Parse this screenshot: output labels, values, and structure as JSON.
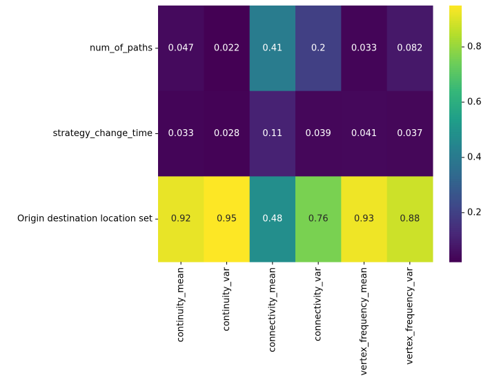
{
  "chart_data": {
    "type": "heatmap",
    "title": "",
    "xlabel": "",
    "ylabel": "",
    "colormap": "viridis",
    "x_categories": [
      "continuity_mean",
      "continuity_var",
      "connectivity_mean",
      "connectivity_var",
      "vertex_frequency_mean",
      "vertex_frequency_var"
    ],
    "y_categories": [
      "num_of_paths",
      "strategy_change_time",
      "Origin destination location set"
    ],
    "values": [
      [
        0.047,
        0.022,
        0.41,
        0.2,
        0.033,
        0.082
      ],
      [
        0.033,
        0.028,
        0.11,
        0.039,
        0.041,
        0.037
      ],
      [
        0.92,
        0.95,
        0.48,
        0.76,
        0.93,
        0.88
      ]
    ],
    "value_labels": [
      [
        "0.047",
        "0.022",
        "0.41",
        "0.2",
        "0.033",
        "0.082"
      ],
      [
        "0.033",
        "0.028",
        "0.11",
        "0.039",
        "0.041",
        "0.037"
      ],
      [
        "0.92",
        "0.95",
        "0.48",
        "0.76",
        "0.93",
        "0.88"
      ]
    ],
    "colorbar": {
      "range": [
        0.022,
        0.95
      ],
      "ticks": [
        0.2,
        0.4,
        0.6,
        0.8
      ],
      "tick_labels": [
        "0.2",
        "0.4",
        "0.6",
        "0.8"
      ]
    }
  }
}
